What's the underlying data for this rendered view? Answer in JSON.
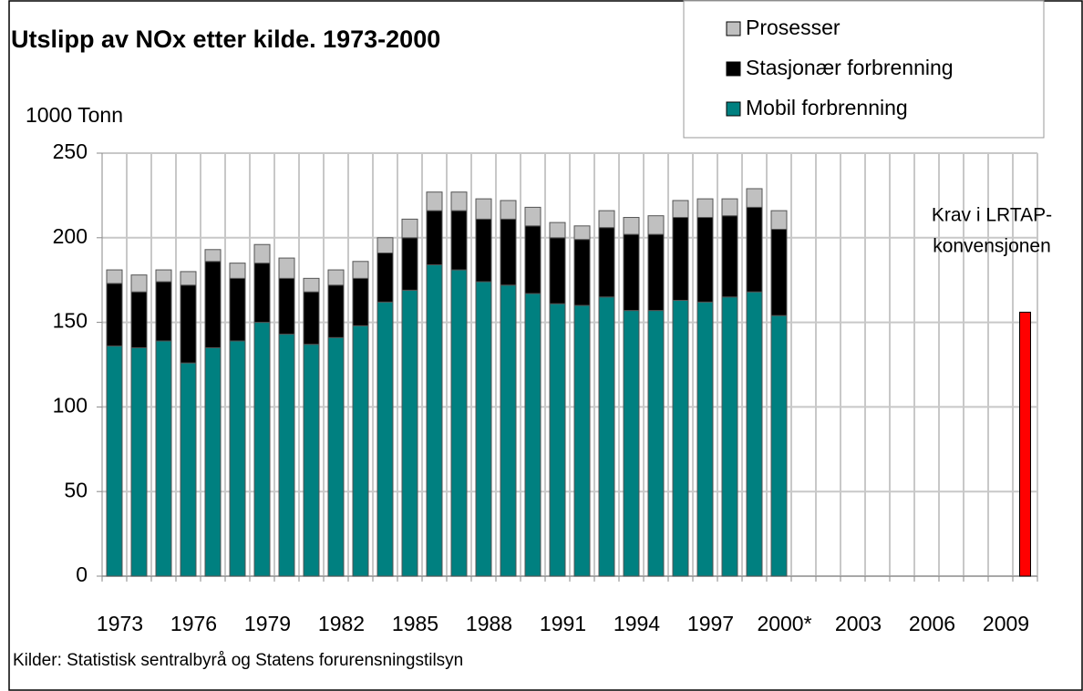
{
  "chart_data": {
    "type": "stacked_bar",
    "title": "Utslipp av NOx etter kilde. 1973-2000",
    "y_axis_label": "1000 Tonn",
    "source": "Kilder: Statistisk sentralbyrå og Statens forurensningstilsyn",
    "categories": [
      "1973",
      null,
      null,
      "1976",
      null,
      null,
      "1979",
      null,
      null,
      "1982",
      null,
      null,
      "1985",
      null,
      null,
      "1988",
      null,
      null,
      "1991",
      null,
      null,
      "1994",
      null,
      null,
      "1997",
      null,
      null,
      "2000*",
      null,
      null,
      "2003",
      null,
      null,
      "2006",
      null,
      null,
      "2009",
      null
    ],
    "series": [
      {
        "name": "Mobil forbrenning",
        "color": "#008080",
        "values": [
          136,
          135,
          139,
          126,
          135,
          139,
          150,
          143,
          137,
          141,
          148,
          162,
          169,
          184,
          181,
          174,
          172,
          167,
          161,
          160,
          165,
          157,
          157,
          163,
          162,
          165,
          168,
          154,
          null,
          null,
          null,
          null,
          null,
          null,
          null,
          null,
          null,
          null
        ]
      },
      {
        "name": "Stasjonær forbrenning",
        "color": "#000000",
        "values": [
          37,
          33,
          35,
          46,
          51,
          37,
          35,
          33,
          31,
          31,
          28,
          29,
          31,
          32,
          35,
          37,
          39,
          40,
          39,
          39,
          41,
          45,
          45,
          49,
          50,
          48,
          50,
          51,
          null,
          null,
          null,
          null,
          null,
          null,
          null,
          null,
          null,
          null
        ]
      },
      {
        "name": "Prosesser",
        "color": "#c0c0c0",
        "values": [
          8,
          10,
          7,
          8,
          7,
          9,
          11,
          12,
          8,
          9,
          10,
          9,
          11,
          11,
          11,
          12,
          11,
          11,
          9,
          8,
          10,
          10,
          11,
          10,
          11,
          10,
          11,
          11,
          null,
          null,
          null,
          null,
          null,
          null,
          null,
          null,
          null,
          null
        ]
      }
    ],
    "target": {
      "label": [
        "Krav i LRTAP-",
        "konvensjonen"
      ],
      "color": "#ff0000",
      "values": [
        null,
        null,
        null,
        null,
        null,
        null,
        null,
        null,
        null,
        null,
        null,
        null,
        null,
        null,
        null,
        null,
        null,
        null,
        null,
        null,
        null,
        null,
        null,
        null,
        null,
        null,
        null,
        null,
        null,
        null,
        null,
        null,
        null,
        null,
        null,
        null,
        null,
        156
      ]
    },
    "ylim": [
      0,
      250
    ],
    "yticks": [
      0,
      50,
      100,
      150,
      200,
      250
    ],
    "grid": true
  }
}
